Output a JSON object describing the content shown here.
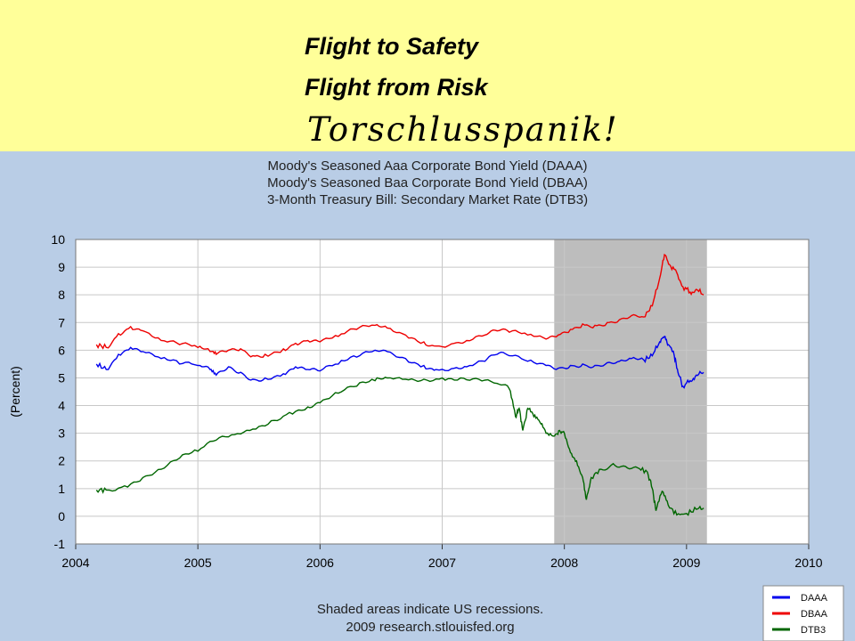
{
  "headline": {
    "line1": "Flight to Safety",
    "line2": "Flight from Risk",
    "line3": "Torschlusspanik!"
  },
  "chart_data": {
    "type": "line",
    "title_lines": [
      "Moody's Seasoned Aaa Corporate Bond Yield (DAAA)",
      "Moody's Seasoned Baa Corporate Bond Yield (DBAA)",
      "3-Month Treasury Bill: Secondary Market Rate (DTB3)"
    ],
    "ylabel": "(Percent)",
    "xlabel": "",
    "xlim": [
      2004,
      2010
    ],
    "ylim": [
      -1,
      10
    ],
    "x_ticks": [
      "2004",
      "2005",
      "2006",
      "2007",
      "2008",
      "2009",
      "2010"
    ],
    "y_ticks": [
      "-1",
      "0",
      "1",
      "2",
      "3",
      "4",
      "5",
      "6",
      "7",
      "8",
      "9",
      "10"
    ],
    "grid": true,
    "legend_position": "bottom-right",
    "recession": {
      "start": 2007.917,
      "end": 2009.167
    },
    "note_lines": [
      "Shaded areas indicate US recessions.",
      "2009 research.stlouisfed.org"
    ],
    "series": [
      {
        "name": "DAAA",
        "color": "#0000EE",
        "points": [
          [
            2004.17,
            5.5
          ],
          [
            2004.25,
            5.3
          ],
          [
            2004.35,
            5.85
          ],
          [
            2004.45,
            6.1
          ],
          [
            2004.55,
            5.95
          ],
          [
            2004.7,
            5.7
          ],
          [
            2004.85,
            5.5
          ],
          [
            2005.0,
            5.45
          ],
          [
            2005.1,
            5.3
          ],
          [
            2005.15,
            5.1
          ],
          [
            2005.25,
            5.4
          ],
          [
            2005.35,
            5.2
          ],
          [
            2005.45,
            4.95
          ],
          [
            2005.55,
            5.0
          ],
          [
            2005.7,
            5.15
          ],
          [
            2005.8,
            5.4
          ],
          [
            2005.9,
            5.3
          ],
          [
            2006.0,
            5.25
          ],
          [
            2006.15,
            5.5
          ],
          [
            2006.3,
            5.75
          ],
          [
            2006.45,
            6.0
          ],
          [
            2006.55,
            5.95
          ],
          [
            2006.7,
            5.7
          ],
          [
            2006.85,
            5.45
          ],
          [
            2006.95,
            5.3
          ],
          [
            2007.1,
            5.35
          ],
          [
            2007.2,
            5.4
          ],
          [
            2007.35,
            5.6
          ],
          [
            2007.45,
            5.85
          ],
          [
            2007.55,
            5.8
          ],
          [
            2007.7,
            5.6
          ],
          [
            2007.85,
            5.45
          ],
          [
            2007.95,
            5.35
          ],
          [
            2008.05,
            5.45
          ],
          [
            2008.15,
            5.5
          ],
          [
            2008.25,
            5.45
          ],
          [
            2008.35,
            5.55
          ],
          [
            2008.45,
            5.6
          ],
          [
            2008.55,
            5.7
          ],
          [
            2008.65,
            5.65
          ],
          [
            2008.72,
            5.8
          ],
          [
            2008.78,
            6.3
          ],
          [
            2008.82,
            6.5
          ],
          [
            2008.85,
            6.2
          ],
          [
            2008.9,
            5.8
          ],
          [
            2008.93,
            5.2
          ],
          [
            2008.97,
            4.7
          ],
          [
            2009.03,
            4.9
          ],
          [
            2009.08,
            5.1
          ],
          [
            2009.14,
            5.2
          ]
        ]
      },
      {
        "name": "DBAA",
        "color": "#EE0000",
        "points": [
          [
            2004.17,
            6.2
          ],
          [
            2004.25,
            6.1
          ],
          [
            2004.35,
            6.6
          ],
          [
            2004.45,
            6.85
          ],
          [
            2004.55,
            6.7
          ],
          [
            2004.7,
            6.35
          ],
          [
            2004.85,
            6.2
          ],
          [
            2005.0,
            6.1
          ],
          [
            2005.1,
            5.95
          ],
          [
            2005.15,
            5.85
          ],
          [
            2005.25,
            6.0
          ],
          [
            2005.35,
            6.05
          ],
          [
            2005.45,
            5.8
          ],
          [
            2005.55,
            5.85
          ],
          [
            2005.7,
            6.05
          ],
          [
            2005.8,
            6.25
          ],
          [
            2005.9,
            6.35
          ],
          [
            2006.0,
            6.3
          ],
          [
            2006.15,
            6.5
          ],
          [
            2006.3,
            6.75
          ],
          [
            2006.45,
            6.9
          ],
          [
            2006.55,
            6.8
          ],
          [
            2006.7,
            6.55
          ],
          [
            2006.85,
            6.3
          ],
          [
            2006.95,
            6.15
          ],
          [
            2007.1,
            6.25
          ],
          [
            2007.2,
            6.35
          ],
          [
            2007.35,
            6.55
          ],
          [
            2007.45,
            6.7
          ],
          [
            2007.55,
            6.65
          ],
          [
            2007.7,
            6.55
          ],
          [
            2007.85,
            6.4
          ],
          [
            2007.95,
            6.55
          ],
          [
            2008.05,
            6.75
          ],
          [
            2008.15,
            6.95
          ],
          [
            2008.25,
            6.9
          ],
          [
            2008.35,
            7.0
          ],
          [
            2008.45,
            7.1
          ],
          [
            2008.55,
            7.25
          ],
          [
            2008.65,
            7.2
          ],
          [
            2008.72,
            7.6
          ],
          [
            2008.78,
            8.6
          ],
          [
            2008.82,
            9.45
          ],
          [
            2008.86,
            9.1
          ],
          [
            2008.92,
            8.8
          ],
          [
            2008.97,
            8.3
          ],
          [
            2009.03,
            8.1
          ],
          [
            2009.08,
            8.2
          ],
          [
            2009.14,
            8.0
          ]
        ]
      },
      {
        "name": "DTB3",
        "color": "#006600",
        "points": [
          [
            2004.17,
            0.95
          ],
          [
            2004.25,
            0.95
          ],
          [
            2004.4,
            1.1
          ],
          [
            2004.55,
            1.4
          ],
          [
            2004.7,
            1.7
          ],
          [
            2004.85,
            2.1
          ],
          [
            2005.0,
            2.35
          ],
          [
            2005.15,
            2.75
          ],
          [
            2005.3,
            2.95
          ],
          [
            2005.45,
            3.15
          ],
          [
            2005.6,
            3.45
          ],
          [
            2005.75,
            3.75
          ],
          [
            2005.9,
            3.95
          ],
          [
            2006.0,
            4.1
          ],
          [
            2006.15,
            4.45
          ],
          [
            2006.3,
            4.7
          ],
          [
            2006.45,
            4.9
          ],
          [
            2006.55,
            5.0
          ],
          [
            2006.7,
            4.95
          ],
          [
            2006.85,
            4.95
          ],
          [
            2007.0,
            5.0
          ],
          [
            2007.15,
            5.0
          ],
          [
            2007.3,
            4.95
          ],
          [
            2007.45,
            4.8
          ],
          [
            2007.55,
            4.6
          ],
          [
            2007.6,
            3.6
          ],
          [
            2007.63,
            3.9
          ],
          [
            2007.66,
            3.1
          ],
          [
            2007.7,
            3.9
          ],
          [
            2007.75,
            3.6
          ],
          [
            2007.8,
            3.4
          ],
          [
            2007.85,
            3.0
          ],
          [
            2007.92,
            2.9
          ],
          [
            2007.96,
            3.1
          ],
          [
            2008.0,
            3.0
          ],
          [
            2008.05,
            2.3
          ],
          [
            2008.1,
            2.0
          ],
          [
            2008.15,
            1.4
          ],
          [
            2008.18,
            0.6
          ],
          [
            2008.22,
            1.4
          ],
          [
            2008.3,
            1.7
          ],
          [
            2008.4,
            1.9
          ],
          [
            2008.5,
            1.8
          ],
          [
            2008.6,
            1.75
          ],
          [
            2008.68,
            1.6
          ],
          [
            2008.72,
            1.0
          ],
          [
            2008.75,
            0.2
          ],
          [
            2008.8,
            0.9
          ],
          [
            2008.85,
            0.4
          ],
          [
            2008.92,
            0.05
          ],
          [
            2009.0,
            0.1
          ],
          [
            2009.08,
            0.25
          ],
          [
            2009.14,
            0.3
          ]
        ]
      }
    ]
  }
}
